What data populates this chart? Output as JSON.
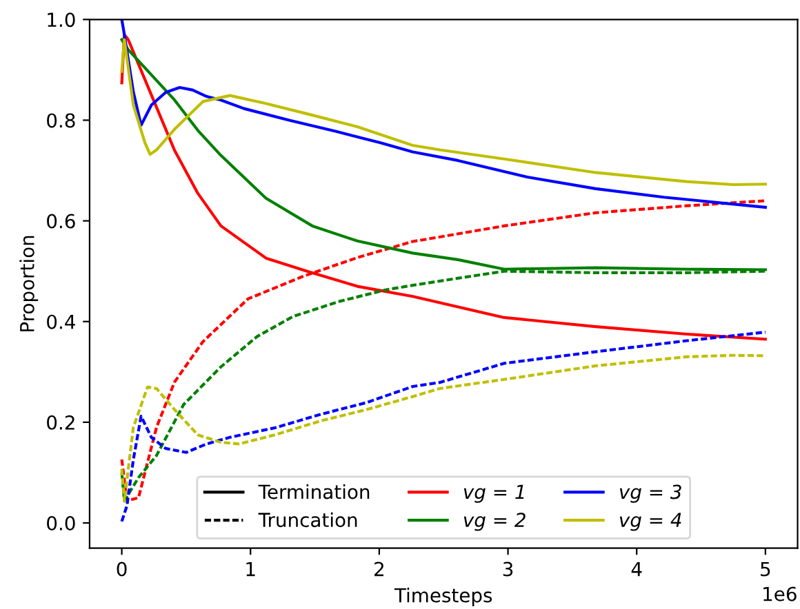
{
  "chart_data": {
    "type": "line",
    "xlabel": "Timesteps",
    "ylabel": "Proportion",
    "xlim": [
      -0.25,
      5.25
    ],
    "xticks": [
      0,
      1,
      2,
      3,
      4,
      5
    ],
    "ylim": [
      -0.05,
      1.0
    ],
    "yticks": [
      {
        "value": 0,
        "label": "0.0"
      },
      0.2,
      0.4,
      0.6,
      0.8,
      {
        "value": 1,
        "label": "1.0"
      }
    ],
    "grid": false,
    "legend": "bottom",
    "marker": "none",
    "annotations": [
      "Termination",
      "Truncation",
      "1e6"
    ],
    "series": [
      {
        "name": "vg = 1",
        "color": "#ff0000",
        "line_style": "solid",
        "x": [
          0,
          0.02,
          0.05,
          0.23,
          0.41,
          0.59,
          0.77,
          1.12,
          1.44,
          1.83,
          2.26,
          2.97,
          3.68,
          4.39,
          5.0
        ],
        "values": [
          0.874,
          0.97,
          0.96,
          0.85,
          0.74,
          0.655,
          0.59,
          0.526,
          0.5,
          0.47,
          0.45,
          0.408,
          0.39,
          0.375,
          0.365
        ]
      },
      {
        "color": "#ff0000",
        "line_style": "dashed",
        "x": [
          0,
          0.04,
          0.13,
          0.27,
          0.41,
          0.63,
          0.98,
          1.41,
          1.83,
          2.26,
          2.47,
          2.97,
          3.68,
          4.39,
          5.0
        ],
        "values": [
          0.126,
          0.044,
          0.05,
          0.19,
          0.28,
          0.36,
          0.445,
          0.49,
          0.527,
          0.559,
          0.568,
          0.59,
          0.616,
          0.63,
          0.64
        ]
      },
      {
        "name": "vg = 2",
        "color": "#008000",
        "line_style": "solid",
        "x": [
          0,
          0.05,
          0.23,
          0.41,
          0.59,
          0.77,
          1.12,
          1.48,
          1.83,
          2.26,
          2.61,
          2.97,
          3.68,
          4.39,
          5.0
        ],
        "values": [
          0.96,
          0.94,
          0.89,
          0.84,
          0.78,
          0.73,
          0.645,
          0.59,
          0.56,
          0.536,
          0.523,
          0.504,
          0.507,
          0.504,
          0.503
        ]
      },
      {
        "color": "#008000",
        "line_style": "dashed",
        "x": [
          0,
          0.02,
          0.13,
          0.27,
          0.48,
          0.77,
          1.05,
          1.33,
          1.69,
          2.05,
          2.26,
          2.61,
          2.97,
          3.68,
          4.39,
          5.0
        ],
        "values": [
          0.1,
          0.044,
          0.09,
          0.134,
          0.235,
          0.31,
          0.37,
          0.41,
          0.44,
          0.463,
          0.472,
          0.486,
          0.5,
          0.497,
          0.497,
          0.5
        ]
      },
      {
        "name": "vg = 3",
        "color": "#0000ff",
        "line_style": "solid",
        "x": [
          0,
          0.02,
          0.09,
          0.15,
          0.23,
          0.34,
          0.45,
          0.55,
          0.66,
          0.77,
          0.95,
          1.3,
          1.66,
          2.01,
          2.26,
          2.61,
          3.15,
          3.68,
          4.21,
          5.0
        ],
        "values": [
          1.0,
          0.97,
          0.856,
          0.79,
          0.83,
          0.855,
          0.865,
          0.86,
          0.847,
          0.84,
          0.823,
          0.8,
          0.778,
          0.755,
          0.737,
          0.72,
          0.687,
          0.664,
          0.647,
          0.627
        ]
      },
      {
        "color": "#0000ff",
        "line_style": "dashed",
        "x": [
          0,
          0.04,
          0.09,
          0.15,
          0.23,
          0.34,
          0.5,
          0.66,
          0.84,
          1.19,
          1.55,
          1.9,
          2.26,
          2.47,
          2.97,
          3.68,
          4.39,
          5.0
        ],
        "values": [
          0.003,
          0.034,
          0.126,
          0.212,
          0.17,
          0.148,
          0.14,
          0.157,
          0.17,
          0.189,
          0.216,
          0.239,
          0.271,
          0.279,
          0.317,
          0.34,
          0.362,
          0.379
        ]
      },
      {
        "name": "vg = 4",
        "color": "#bfbf00",
        "line_style": "solid",
        "x": [
          0,
          0.02,
          0.09,
          0.18,
          0.22,
          0.27,
          0.41,
          0.63,
          0.84,
          1.12,
          1.48,
          1.83,
          2.26,
          2.47,
          2.97,
          3.68,
          4.39,
          4.75,
          5.0
        ],
        "values": [
          0.897,
          0.96,
          0.83,
          0.755,
          0.732,
          0.741,
          0.782,
          0.837,
          0.849,
          0.833,
          0.81,
          0.787,
          0.75,
          0.741,
          0.723,
          0.696,
          0.678,
          0.672,
          0.673
        ]
      },
      {
        "color": "#bfbf00",
        "line_style": "dashed",
        "x": [
          0,
          0.02,
          0.09,
          0.2,
          0.27,
          0.41,
          0.59,
          0.77,
          0.91,
          1.19,
          1.55,
          1.9,
          2.26,
          2.47,
          2.97,
          3.68,
          4.39,
          4.75,
          5.0
        ],
        "values": [
          0.107,
          0.043,
          0.19,
          0.27,
          0.267,
          0.225,
          0.175,
          0.16,
          0.157,
          0.175,
          0.203,
          0.225,
          0.251,
          0.267,
          0.285,
          0.312,
          0.33,
          0.333,
          0.332
        ]
      }
    ]
  }
}
